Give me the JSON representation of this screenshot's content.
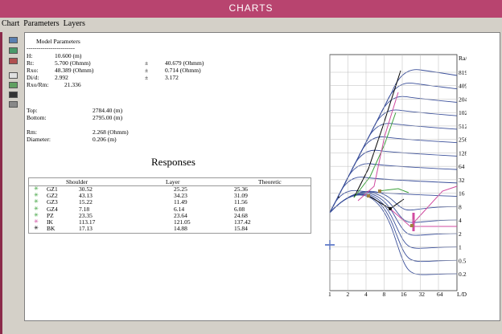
{
  "window": {
    "title": "CHARTS"
  },
  "menu": [
    "Chart",
    "Parameters",
    "Layers"
  ],
  "model_parameters": {
    "title": "Model Parameters",
    "separator": "------------------------",
    "rows": [
      {
        "label": "H:",
        "value": "10.600 (m)"
      },
      {
        "label": "Rt:",
        "value": "5.700 (Ohmm)",
        "sign": "±",
        "error": "40.679 (Ohmm)"
      },
      {
        "label": "Rxo:",
        "value": "48.389 (Ohmm)",
        "sign": "±",
        "error": "0.714 (Ohmm)"
      },
      {
        "label": "Di/d:",
        "value": "2.992",
        "sign": "±",
        "error": "3.172"
      },
      {
        "label": "Rxo/Rm:",
        "value": "21.336"
      }
    ]
  },
  "depth": [
    {
      "label": "Top:",
      "value": "2784.40 (m)"
    },
    {
      "label": "Bottom:",
      "value": "2795.00 (m)"
    }
  ],
  "mud": [
    {
      "label": "Rm:",
      "value": "2.268   (Ohmm)"
    },
    {
      "label": "Diameter:",
      "value": "0.206  (m)"
    }
  ],
  "responses": {
    "title": "Responses",
    "columns": [
      "Shoulder",
      "Layer",
      "Theoretic"
    ],
    "rows": [
      {
        "name": "GZ1",
        "color": "#3aa03a",
        "values": [
          "30.52",
          "25.25",
          "25.36"
        ]
      },
      {
        "name": "GZ2",
        "color": "#3aa03a",
        "values": [
          "43.13",
          "34.23",
          "31.09"
        ]
      },
      {
        "name": "GZ3",
        "color": "#3aa03a",
        "values": [
          "15.22",
          "11.49",
          "11.56"
        ]
      },
      {
        "name": "GZ4",
        "color": "#3aa03a",
        "values": [
          "7.18",
          "6.14",
          "6.08"
        ]
      },
      {
        "name": "PZ",
        "color": "#3aa03a",
        "values": [
          "23.35",
          "23.64",
          "24.68"
        ]
      },
      {
        "name": "IK",
        "color": "#d04aa0",
        "values": [
          "113.17",
          "121.05",
          "137.42"
        ]
      },
      {
        "name": "BK",
        "color": "#000000",
        "values": [
          "17.13",
          "14.88",
          "15.84"
        ]
      }
    ]
  },
  "chart": {
    "y_unit": "Ra/Rm",
    "x_unit": "L/D",
    "y_labels": [
      "8192",
      "4096",
      "2048",
      "1024",
      "512",
      "256",
      "128",
      "64",
      "32",
      "16",
      "8",
      "4",
      "2",
      "1",
      "0.5",
      "0.25"
    ],
    "x_labels": [
      "1",
      "2",
      "4",
      "8",
      "16",
      "32",
      "64"
    ]
  }
}
